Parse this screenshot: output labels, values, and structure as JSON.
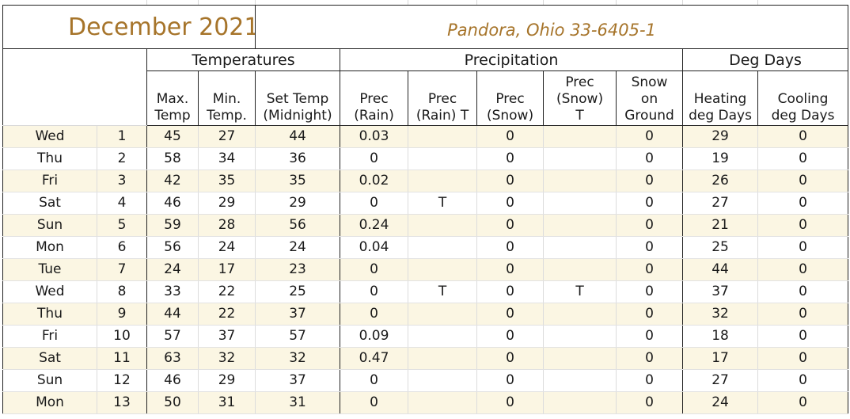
{
  "header": {
    "month": "December 2021",
    "location": "Pandora, Ohio 33-6405-1"
  },
  "groups": {
    "temperatures": "Temperatures",
    "precipitation": "Precipitation",
    "deg_days": "Deg Days"
  },
  "columns": {
    "max_temp": [
      "Max.",
      "Temp"
    ],
    "min_temp": [
      "Min.",
      "Temp."
    ],
    "set_temp": [
      "Set Temp",
      "(Midnight)"
    ],
    "prec_rain": [
      "Prec",
      "(Rain)"
    ],
    "prec_rain_t": [
      "Prec",
      "(Rain) T"
    ],
    "prec_snow": [
      "Prec",
      "(Snow)"
    ],
    "prec_snow_t": [
      "Prec",
      "(Snow)",
      "T"
    ],
    "snow_ground": [
      "Snow",
      "on",
      "Ground"
    ],
    "heating": [
      "Heating",
      "deg Days"
    ],
    "cooling": [
      "Cooling",
      "deg Days"
    ]
  },
  "rows": [
    {
      "day": "Wed",
      "date": "1",
      "max": "45",
      "min": "27",
      "set": "44",
      "rain": "0.03",
      "rain_t": "",
      "snow": "0",
      "snow_t": "",
      "ground": "0",
      "heating": "29",
      "cooling": "0"
    },
    {
      "day": "Thu",
      "date": "2",
      "max": "58",
      "min": "34",
      "set": "36",
      "rain": "0",
      "rain_t": "",
      "snow": "0",
      "snow_t": "",
      "ground": "0",
      "heating": "19",
      "cooling": "0"
    },
    {
      "day": "Fri",
      "date": "3",
      "max": "42",
      "min": "35",
      "set": "35",
      "rain": "0.02",
      "rain_t": "",
      "snow": "0",
      "snow_t": "",
      "ground": "0",
      "heating": "26",
      "cooling": "0"
    },
    {
      "day": "Sat",
      "date": "4",
      "max": "46",
      "min": "29",
      "set": "29",
      "rain": "0",
      "rain_t": "T",
      "snow": "0",
      "snow_t": "",
      "ground": "0",
      "heating": "27",
      "cooling": "0"
    },
    {
      "day": "Sun",
      "date": "5",
      "max": "59",
      "min": "28",
      "set": "56",
      "rain": "0.24",
      "rain_t": "",
      "snow": "0",
      "snow_t": "",
      "ground": "0",
      "heating": "21",
      "cooling": "0"
    },
    {
      "day": "Mon",
      "date": "6",
      "max": "56",
      "min": "24",
      "set": "24",
      "rain": "0.04",
      "rain_t": "",
      "snow": "0",
      "snow_t": "",
      "ground": "0",
      "heating": "25",
      "cooling": "0"
    },
    {
      "day": "Tue",
      "date": "7",
      "max": "24",
      "min": "17",
      "set": "23",
      "rain": "0",
      "rain_t": "",
      "snow": "0",
      "snow_t": "",
      "ground": "0",
      "heating": "44",
      "cooling": "0"
    },
    {
      "day": "Wed",
      "date": "8",
      "max": "33",
      "min": "22",
      "set": "25",
      "rain": "0",
      "rain_t": "T",
      "snow": "0",
      "snow_t": "T",
      "ground": "0",
      "heating": "37",
      "cooling": "0"
    },
    {
      "day": "Thu",
      "date": "9",
      "max": "44",
      "min": "22",
      "set": "37",
      "rain": "0",
      "rain_t": "",
      "snow": "0",
      "snow_t": "",
      "ground": "0",
      "heating": "32",
      "cooling": "0"
    },
    {
      "day": "Fri",
      "date": "10",
      "max": "57",
      "min": "37",
      "set": "57",
      "rain": "0.09",
      "rain_t": "",
      "snow": "0",
      "snow_t": "",
      "ground": "0",
      "heating": "18",
      "cooling": "0"
    },
    {
      "day": "Sat",
      "date": "11",
      "max": "63",
      "min": "32",
      "set": "32",
      "rain": "0.47",
      "rain_t": "",
      "snow": "0",
      "snow_t": "",
      "ground": "0",
      "heating": "17",
      "cooling": "0"
    },
    {
      "day": "Sun",
      "date": "12",
      "max": "46",
      "min": "29",
      "set": "37",
      "rain": "0",
      "rain_t": "",
      "snow": "0",
      "snow_t": "",
      "ground": "0",
      "heating": "27",
      "cooling": "0"
    },
    {
      "day": "Mon",
      "date": "13",
      "max": "50",
      "min": "31",
      "set": "31",
      "rain": "0",
      "rain_t": "",
      "snow": "0",
      "snow_t": "",
      "ground": "0",
      "heating": "24",
      "cooling": "0"
    }
  ],
  "colors": {
    "title": "#a6742a",
    "row_shade": "#fbf6e3",
    "border": "#222222"
  }
}
